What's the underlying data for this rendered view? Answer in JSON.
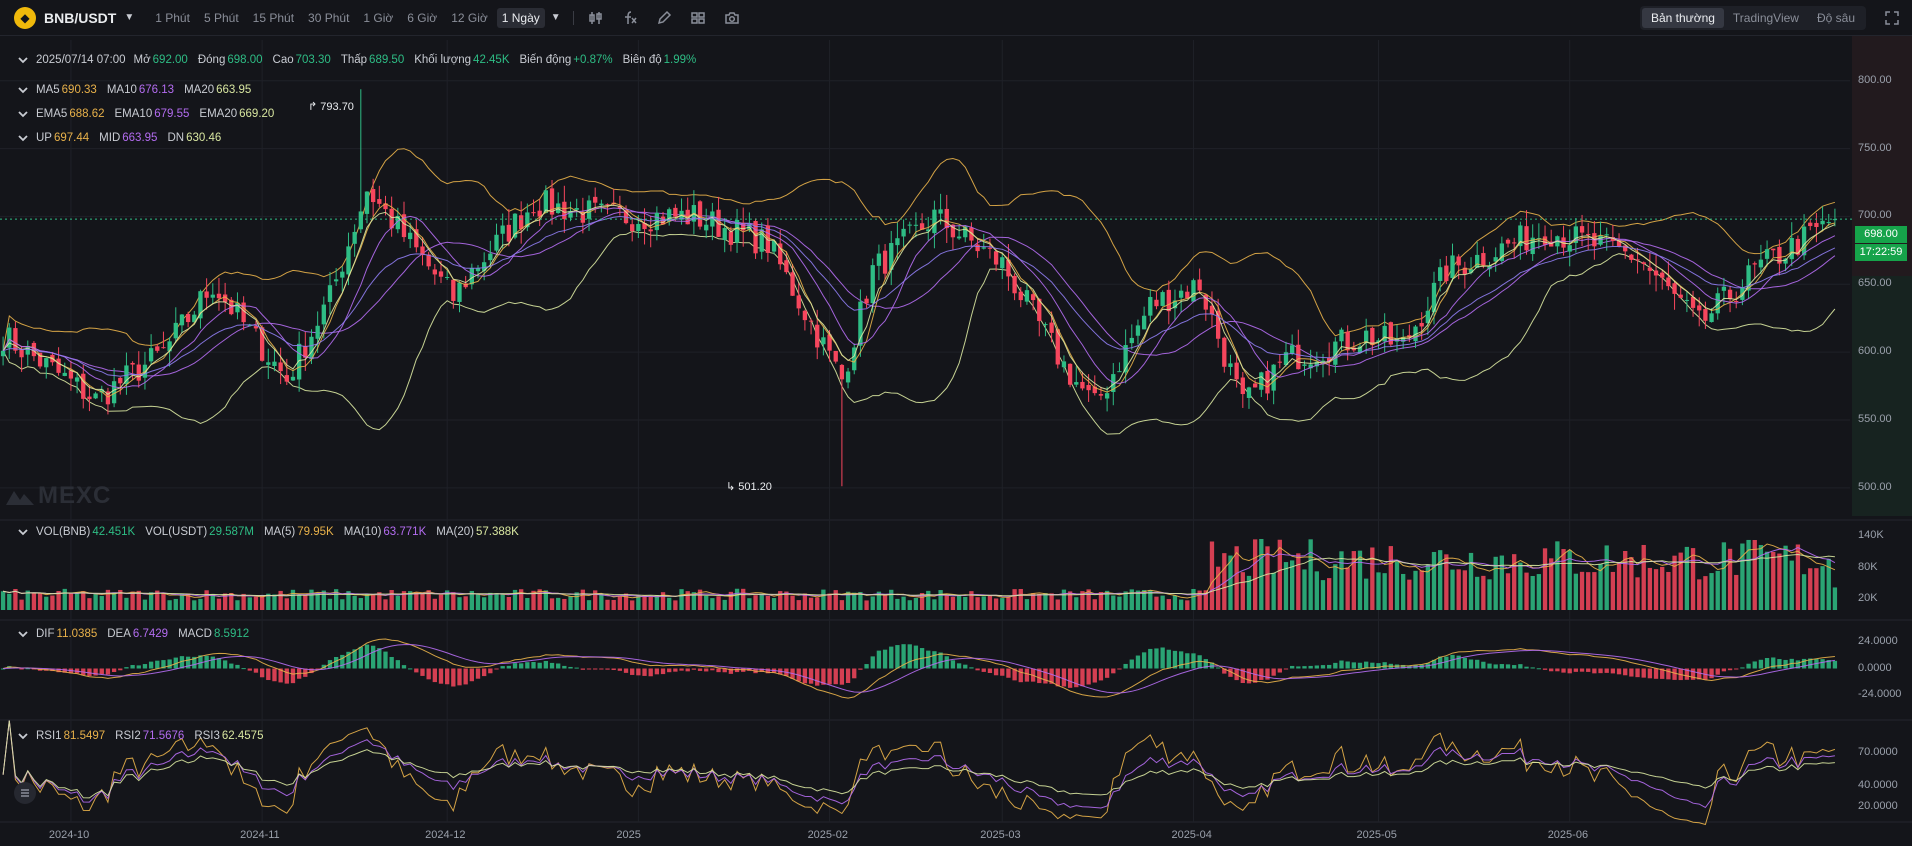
{
  "toolbar": {
    "pair": "BNB/USDT",
    "intervals": [
      "1 Phút",
      "5 Phút",
      "15 Phút",
      "30 Phút",
      "1 Giờ",
      "6 Giờ",
      "12 Giờ",
      "1 Ngày"
    ],
    "active_interval": "1 Ngày",
    "view_tabs": [
      "Bản thường",
      "TradingView",
      "Độ sâu"
    ],
    "active_view": "Bản thường"
  },
  "ohlc": {
    "date": "2025/07/14 07:00",
    "open_label": "Mở",
    "open": "692.00",
    "close_label": "Đóng",
    "close": "698.00",
    "high_label": "Cao",
    "high": "703.30",
    "low_label": "Thấp",
    "low": "689.50",
    "volume_label": "Khối lượng",
    "volume": "42.45K",
    "change_label": "Biến động",
    "change": "+0.87%",
    "amplitude_label": "Biên độ",
    "amplitude": "1.99%"
  },
  "ma": {
    "ma5_label": "MA5",
    "ma5": "690.33",
    "ma10_label": "MA10",
    "ma10": "676.13",
    "ma20_label": "MA20",
    "ma20": "663.95"
  },
  "ema": {
    "ema5_label": "EMA5",
    "ema5": "688.62",
    "ema10_label": "EMA10",
    "ema10": "679.55",
    "ema20_label": "EMA20",
    "ema20": "669.20"
  },
  "boll": {
    "up_label": "UP",
    "up": "697.44",
    "mid_label": "MID",
    "mid": "663.95",
    "dn_label": "DN",
    "dn": "630.46"
  },
  "vol": {
    "bnb_label": "VOL(BNB)",
    "bnb": "42.451K",
    "usdt_label": "VOL(USDT)",
    "usdt": "29.587M",
    "ma5_label": "MA(5)",
    "ma5": "79.95K",
    "ma10_label": "MA(10)",
    "ma10": "63.771K",
    "ma20_label": "MA(20)",
    "ma20": "57.388K"
  },
  "macd": {
    "dif_label": "DIF",
    "dif": "11.0385",
    "dea_label": "DEA",
    "dea": "6.7429",
    "macd_label": "MACD",
    "macd": "8.5912"
  },
  "rsi": {
    "rsi1_label": "RSI1",
    "rsi1": "81.5497",
    "rsi2_label": "RSI2",
    "rsi2": "71.5676",
    "rsi3_label": "RSI3",
    "rsi3": "62.4575"
  },
  "annotations": {
    "high_mark": "793.70",
    "low_mark": "501.20"
  },
  "last_price": {
    "price": "698.00",
    "countdown": "17:22:59"
  },
  "watermark": "MEXC",
  "axes": {
    "price_ticks": [
      "800.00",
      "750.00",
      "700.00",
      "650.00",
      "600.00",
      "550.00",
      "500.00"
    ],
    "vol_ticks": [
      "140K",
      "80K",
      "20K"
    ],
    "macd_ticks": [
      "24.0000",
      "0.0000",
      "-24.0000"
    ],
    "rsi_ticks": [
      "70.0000",
      "40.0000",
      "20.0000"
    ],
    "time_ticks": [
      "2024-10",
      "2024-11",
      "2024-12",
      "2025",
      "2025-02",
      "2025-03",
      "2025-04",
      "2025-05",
      "2025-06"
    ]
  },
  "colors": {
    "up": "#2ebd85",
    "down": "#f6465d",
    "ma5": "#e8b14a",
    "ma10": "#b36cf0",
    "ma20": "#d8e6a0",
    "boll": "#e8b14a",
    "grid": "#1f2128",
    "accent": "#16a34a"
  },
  "chart_data": {
    "type": "candlestick",
    "x_range": [
      "2024-09-20",
      "2025-07-14"
    ],
    "price_range": [
      480,
      830
    ],
    "anchors": [
      [
        "2024-09-20",
        612
      ],
      [
        "2024-10-05",
        565
      ],
      [
        "2024-10-16",
        600
      ],
      [
        "2024-10-24",
        650
      ],
      [
        "2024-11-05",
        580
      ],
      [
        "2024-11-12",
        640
      ],
      [
        "2024-11-18",
        720
      ],
      [
        "2024-12-02",
        640
      ],
      [
        "2024-12-05",
        660
      ],
      [
        "2024-12-15",
        710
      ],
      [
        "2024-12-27",
        700
      ],
      [
        "2025-01-10",
        700
      ],
      [
        "2025-01-22",
        680
      ],
      [
        "2025-02-03",
        580
      ],
      [
        "2025-02-08",
        660
      ],
      [
        "2025-02-18",
        700
      ],
      [
        "2025-03-01",
        665
      ],
      [
        "2025-03-11",
        590
      ],
      [
        "2025-03-16",
        560
      ],
      [
        "2025-03-25",
        635
      ],
      [
        "2025-04-02",
        650
      ],
      [
        "2025-04-09",
        560
      ],
      [
        "2025-04-16",
        595
      ],
      [
        "2025-04-29",
        612
      ],
      [
        "2025-05-05",
        605
      ],
      [
        "2025-05-12",
        660
      ],
      [
        "2025-05-28",
        690
      ],
      [
        "2025-06-12",
        670
      ],
      [
        "2025-06-22",
        620
      ],
      [
        "2025-07-01",
        660
      ],
      [
        "2025-07-14",
        698
      ]
    ],
    "wick_extremes": [
      [
        "2024-11-17",
        793.7
      ],
      [
        "2025-02-03",
        501.2
      ]
    ]
  }
}
